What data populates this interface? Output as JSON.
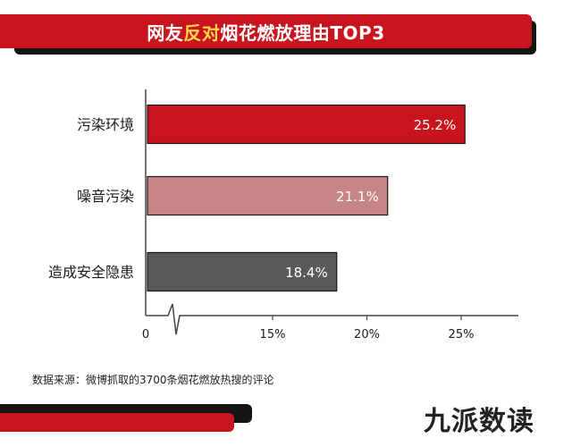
{
  "title_parts": [
    "网友",
    "反对",
    "烟花燃放理由TOP3"
  ],
  "source_text": "数据来源：微博抓取的3700条烟花燃放热搜的评论",
  "brand_text": "九派数读",
  "colors": {
    "accent_red": "#c8141e",
    "title_highlight": "#ffd84a",
    "bar_colors": [
      "#c8141e",
      "#c78585",
      "#5a5a5a"
    ]
  },
  "chart_data": {
    "type": "bar",
    "orientation": "horizontal",
    "categories": [
      "污染环境",
      "噪音污染",
      "造成安全隐患"
    ],
    "values": [
      25.2,
      21.1,
      18.4
    ],
    "value_labels": [
      "25.2%",
      "21.1%",
      "18.4%"
    ],
    "x_ticks": [
      0,
      15,
      20,
      25
    ],
    "x_tick_labels": [
      "0",
      "15%",
      "20%",
      "25%"
    ],
    "axis_break": true,
    "xlim": [
      0,
      28
    ],
    "grid": false,
    "legend": "none"
  }
}
